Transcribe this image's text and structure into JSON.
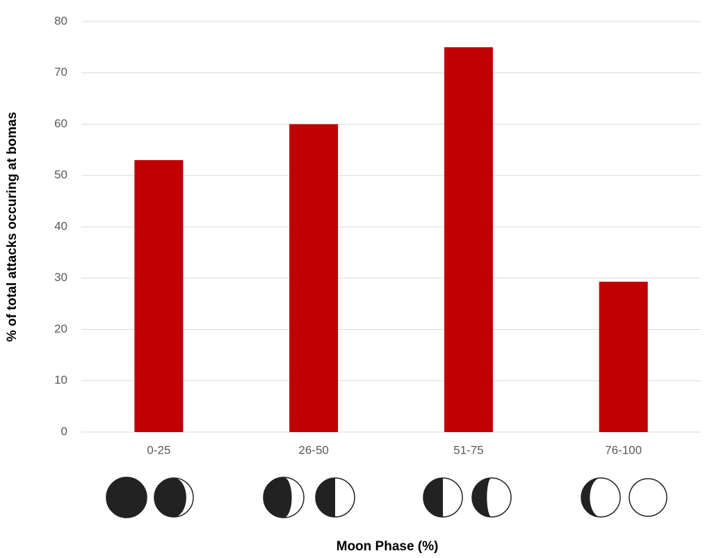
{
  "chart_data": {
    "type": "bar",
    "x_label": "Moon Phase (%)",
    "y_label": "% of total attacks occuring at bomas",
    "categories": [
      "0-25",
      "26-50",
      "51-75",
      "76-100"
    ],
    "values": [
      53,
      60,
      75,
      29.3
    ],
    "color": "#c00000",
    "ylim": [
      0,
      80
    ],
    "yticks": [
      0,
      10,
      20,
      30,
      40,
      50,
      60,
      70,
      80
    ],
    "grid": true
  }
}
